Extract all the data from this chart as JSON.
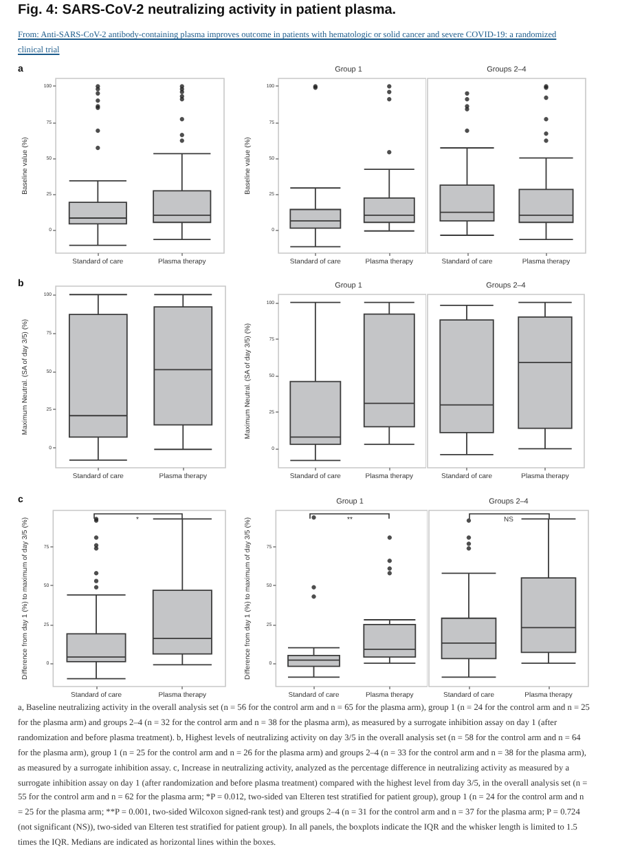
{
  "chart_data": [
    {
      "type": "other",
      "title": "Fig. 4: SARS-CoV-2 neutralizing activity in patient plasma.",
      "subtitle": "From: Anti-SARS-CoV-2 antibody-containing plasma improves outcome in patients with hematologic or solid cancer and severe COVID-19: a randomized clinical trial"
    },
    {
      "type": "box",
      "ylabel": "Baseline value (%)",
      "categories": [
        "Standard of care",
        "Plasma therapy"
      ],
      "color": "#c4c5c7",
      "boxes": [
        {
          "low": -11,
          "q1": 4,
          "median": 8,
          "q3": 19,
          "high": 34,
          "outliers": [
            57,
            69,
            85,
            86,
            90,
            95,
            98,
            100
          ]
        },
        {
          "low": -7,
          "q1": 5,
          "median": 10,
          "q3": 27,
          "high": 53,
          "outliers": [
            62,
            66,
            77,
            91,
            93,
            96,
            98,
            100
          ]
        }
      ],
      "ylim": [
        -16.5,
        105.5
      ],
      "yticks": [
        0,
        25,
        50,
        75,
        100
      ],
      "annotations": [
        "a"
      ]
    },
    {
      "type": "box",
      "title": "Group 1",
      "ylabel": "Baseline value (%)",
      "categories": [
        "Standard of care",
        "Plasma therapy"
      ],
      "color": "#c4c5c7",
      "boxes": [
        {
          "low": -12,
          "q1": 1,
          "median": 6,
          "q3": 14,
          "high": 29,
          "outliers": [
            99,
            100
          ]
        },
        {
          "low": -1,
          "q1": 5,
          "median": 10,
          "q3": 22,
          "high": 42,
          "outliers": [
            54,
            91,
            96,
            100
          ]
        }
      ],
      "ylim": [
        -16.5,
        105.5
      ],
      "yticks": [
        0,
        25,
        50,
        75,
        100
      ]
    },
    {
      "type": "box",
      "title": "Groups 2–4",
      "categories": [
        "Standard of care",
        "Plasma therapy"
      ],
      "color": "#c4c5c7",
      "boxes": [
        {
          "low": -4,
          "q1": 6,
          "median": 12,
          "q3": 31,
          "high": 57,
          "outliers": [
            69,
            84,
            86,
            91,
            95
          ]
        },
        {
          "low": -7,
          "q1": 5,
          "median": 10,
          "q3": 28,
          "high": 50,
          "outliers": [
            62,
            67,
            77,
            92,
            99,
            100
          ]
        }
      ],
      "ylim": [
        -16.5,
        105.5
      ],
      "yticks": [
        0,
        25,
        50,
        75,
        100
      ],
      "tick_labels": "x"
    },
    {
      "type": "box",
      "ylabel": "Maximum Neutral. (SA of day 3/5) (%)",
      "categories": [
        "Standard of care",
        "Plasma therapy"
      ],
      "color": "#c4c5c7",
      "boxes": [
        {
          "low": -8,
          "q1": 7,
          "median": 21,
          "q3": 87,
          "high": 100
        },
        {
          "low": -1,
          "q1": 15,
          "median": 51,
          "q3": 92,
          "high": 100
        }
      ],
      "ylim": [
        -13,
        105.5
      ],
      "yticks": [
        0,
        25,
        50,
        75,
        100
      ],
      "annotations": [
        "b"
      ]
    },
    {
      "type": "box",
      "title": "Group 1",
      "ylabel": "Maximum Neutral. (SA of day 3/5) (%)",
      "categories": [
        "Standard of care",
        "Plasma therapy"
      ],
      "color": "#c4c5c7",
      "boxes": [
        {
          "low": -8,
          "q1": 3,
          "median": 8,
          "q3": 46,
          "high": 100
        },
        {
          "low": 3,
          "q1": 15,
          "median": 31,
          "q3": 92,
          "high": 100
        }
      ],
      "ylim": [
        -13,
        105.5
      ],
      "yticks": [
        0,
        25,
        50,
        75,
        100
      ]
    },
    {
      "type": "box",
      "title": "Groups 2–4",
      "categories": [
        "Standard of care",
        "Plasma therapy"
      ],
      "color": "#c4c5c7",
      "boxes": [
        {
          "low": -4,
          "q1": 11,
          "median": 30,
          "q3": 88,
          "high": 98
        },
        {
          "low": 0,
          "q1": 14,
          "median": 59,
          "q3": 90,
          "high": 100
        }
      ],
      "ylim": [
        -13,
        105.5
      ],
      "yticks": [
        0,
        25,
        50,
        75,
        100
      ],
      "tick_labels": "x"
    },
    {
      "type": "box",
      "ylabel": "Difference from day 1 (%) to maximum of day 3/5 (%)",
      "categories": [
        "Standard of care",
        "Plasma therapy"
      ],
      "color": "#c4c5c7",
      "boxes": [
        {
          "low": -10,
          "q1": 1,
          "median": 4,
          "q3": 19,
          "high": 44,
          "outliers": [
            49,
            53,
            58,
            74,
            76,
            81,
            92,
            93
          ]
        },
        {
          "low": -1,
          "q1": 6,
          "median": 16,
          "q3": 47,
          "high": 93
        }
      ],
      "ylim": [
        -15,
        98.5
      ],
      "yticks": [
        0,
        25,
        50,
        75
      ],
      "annotations": [
        "c",
        "*"
      ]
    },
    {
      "type": "box",
      "title": "Group 1",
      "ylabel": "Difference from day 1 (%) to maximum of day 3/5 (%)",
      "categories": [
        "Standard of care",
        "Plasma therapy"
      ],
      "color": "#c4c5c7",
      "boxes": [
        {
          "low": -9,
          "q1": -2,
          "median": 2,
          "q3": 5,
          "high": 10,
          "outliers": [
            43,
            49,
            94
          ]
        },
        {
          "low": 0,
          "q1": 4,
          "median": 9,
          "q3": 25,
          "high": 28,
          "outliers": [
            58,
            61,
            66,
            81
          ]
        }
      ],
      "ylim": [
        -15,
        98.5
      ],
      "yticks": [
        0,
        25,
        50,
        75
      ],
      "annotations": [
        "**"
      ]
    },
    {
      "type": "box",
      "title": "Groups 2–4",
      "categories": [
        "Standard of care",
        "Plasma therapy"
      ],
      "color": "#c4c5c7",
      "boxes": [
        {
          "low": -9,
          "q1": 3,
          "median": 13,
          "q3": 29,
          "high": 58,
          "outliers": [
            74,
            77,
            81,
            92
          ]
        },
        {
          "low": 0,
          "q1": 7,
          "median": 23,
          "q3": 55,
          "high": 93
        }
      ],
      "ylim": [
        -15,
        98.5
      ],
      "yticks": [
        0,
        25,
        50,
        75
      ],
      "tick_labels": "x",
      "annotations": [
        "NS"
      ]
    },
    {
      "type": "other",
      "annotations": [
        "a, Baseline neutralizing activity in the overall analysis set (n = 56 for the control arm and n = 65 for the plasma arm), group 1 (n = 24 for the control arm and n = 25 for the plasma arm) and groups 2–4 (n = 32 for the control arm and n = 38 for the plasma arm), as measured by a surrogate inhibition assay on day 1 (after randomization and before plasma treatment). b, Highest levels of neutralizing activity on day 3/5 in the overall analysis set (n = 58 for the control arm and n = 64 for the plasma arm), group 1 (n = 25 for the control arm and n = 26 for the plasma arm) and groups 2–4 (n = 33 for the control arm and n = 38 for the plasma arm), as measured by a surrogate inhibition assay. c, Increase in neutralizing activity, analyzed as the percentage difference in neutralizing activity as measured by a surrogate inhibition assay on day 1 (after randomization and before plasma treatment) compared with the highest level from day 3/5, in the overall analysis set (n = 55 for the control arm and n = 62 for the plasma arm; *P = 0.012, two-sided van Elteren test stratified for patient group), group 1 (n = 24 for the control arm and n = 25 for the plasma arm; **P = 0.001, two-sided Wilcoxon signed-rank test) and groups 2–4 (n = 31 for the control arm and n = 37 for the plasma arm; P = 0.724 (not significant (NS)), two-sided van Elteren test stratified for patient group). In all panels, the boxplots indicate the IQR and the whisker length is limited to 1.5 times the IQR. Medians are indicated as horizontal lines within the boxes."
      ]
    }
  ]
}
